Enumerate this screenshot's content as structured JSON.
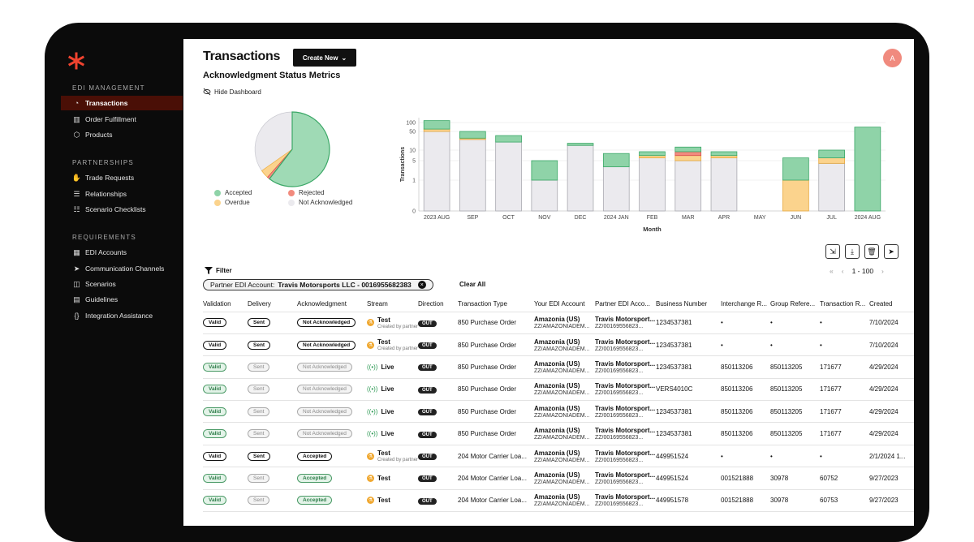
{
  "sidebar": {
    "sections": [
      {
        "title": "EDI MANAGEMENT",
        "items": [
          {
            "label": "Transactions",
            "icon": "chart-icon",
            "active": true
          },
          {
            "label": "Order Fulfillment",
            "icon": "barcode-icon"
          },
          {
            "label": "Products",
            "icon": "box-icon"
          }
        ]
      },
      {
        "title": "PARTNERSHIPS",
        "items": [
          {
            "label": "Trade Requests",
            "icon": "handshake-icon"
          },
          {
            "label": "Relationships",
            "icon": "sliders-icon"
          },
          {
            "label": "Scenario Checklists",
            "icon": "checklist-icon"
          }
        ]
      },
      {
        "title": "REQUIREMENTS",
        "items": [
          {
            "label": "EDI Accounts",
            "icon": "grid-icon"
          },
          {
            "label": "Communication Channels",
            "icon": "send-icon"
          },
          {
            "label": "Scenarios",
            "icon": "layers-icon"
          },
          {
            "label": "Guidelines",
            "icon": "book-icon"
          },
          {
            "label": "Integration Assistance",
            "icon": "braces-icon"
          }
        ]
      }
    ]
  },
  "header": {
    "title": "Transactions",
    "create_label": "Create New",
    "avatar": "A",
    "subtitle": "Acknowledgment Status Metrics",
    "hide_dashboard": "Hide Dashboard"
  },
  "pie": {
    "legend": [
      {
        "label": "Accepted",
        "color": "#8fd3a8"
      },
      {
        "label": "Rejected",
        "color": "#f28b7e"
      },
      {
        "label": "Overdue",
        "color": "#fbd38d"
      },
      {
        "label": "Not Acknowledged",
        "color": "#ebeaee"
      }
    ]
  },
  "chart_data": {
    "type": "bar",
    "stacked": true,
    "yscale": "log",
    "xlabel": "Month",
    "ylabel": "Transactions",
    "yticks": [
      "0",
      "1",
      "5",
      "10",
      "50",
      "100"
    ],
    "categories": [
      "2023 AUG",
      "SEP",
      "OCT",
      "NOV",
      "DEC",
      "2024 JAN",
      "FEB",
      "MAR",
      "APR",
      "MAY",
      "JUN",
      "JUL",
      "2024 AUG"
    ],
    "series": [
      {
        "name": "Not Acknowledged",
        "color": "#ebeaee",
        "values": [
          50,
          25,
          20,
          1,
          15,
          3,
          6,
          5,
          6,
          0,
          0,
          4,
          0
        ]
      },
      {
        "name": "Overdue",
        "color": "#fbd38d",
        "values": [
          10,
          3,
          0,
          0,
          0,
          0,
          1,
          2,
          1,
          0,
          1,
          2,
          0
        ]
      },
      {
        "name": "Rejected",
        "color": "#f28b7e",
        "values": [
          0,
          0,
          0,
          0,
          0,
          0,
          0,
          2,
          0,
          0,
          0,
          0,
          0
        ]
      },
      {
        "name": "Accepted",
        "color": "#8fd3a8",
        "values": [
          60,
          22,
          15,
          4,
          3,
          5,
          2,
          4,
          2,
          0,
          5,
          4,
          70
        ]
      }
    ]
  },
  "toolbar": {
    "filter_label": "Filter",
    "chip_key": "Partner EDI Account:",
    "chip_value": "Travis Motorsports LLC - 0016955682383",
    "clear_all": "Clear All",
    "page_range": "1 - 100"
  },
  "table": {
    "columns": [
      "Validation",
      "Delivery",
      "Acknowledgment",
      "Stream",
      "Direction",
      "Transaction Type",
      "Your EDI Account",
      "Partner EDI Acco...",
      "Business Number",
      "Interchange R...",
      "Group Refere...",
      "Transaction R...",
      "Created"
    ],
    "rows": [
      {
        "validation": "Valid",
        "v_style": "",
        "delivery": "Sent",
        "d_style": "",
        "ack": "Not Acknowledged",
        "a_style": "",
        "stream": "Test",
        "stream_sub": "Created by partner",
        "direction": "OUT",
        "type": "850 Purchase Order",
        "your_name": "Amazonia (US)",
        "your_id": "ZZ/AMAZONIADEM...",
        "partner_name": "Travis Motorsport...",
        "partner_id": "ZZ/00169556823...",
        "business": "1234537381",
        "interchange": "•",
        "group": "•",
        "txn": "•",
        "created": "7/10/2024"
      },
      {
        "validation": "Valid",
        "v_style": "",
        "delivery": "Sent",
        "d_style": "",
        "ack": "Not Acknowledged",
        "a_style": "",
        "stream": "Test",
        "stream_sub": "Created by partner",
        "direction": "OUT",
        "type": "850 Purchase Order",
        "your_name": "Amazonia (US)",
        "your_id": "ZZ/AMAZONIADEM...",
        "partner_name": "Travis Motorsport...",
        "partner_id": "ZZ/00169556823...",
        "business": "1234537381",
        "interchange": "•",
        "group": "•",
        "txn": "•",
        "created": "7/10/2024"
      },
      {
        "validation": "Valid",
        "v_style": "green",
        "delivery": "Sent",
        "d_style": "muted",
        "ack": "Not Acknowledged",
        "a_style": "muted",
        "stream": "Live",
        "stream_sub": "",
        "direction": "OUT",
        "type": "850 Purchase Order",
        "your_name": "Amazonia (US)",
        "your_id": "ZZ/AMAZONIADEM...",
        "partner_name": "Travis Motorsport...",
        "partner_id": "ZZ/00169556823...",
        "business": "1234537381",
        "interchange": "850113206",
        "group": "850113205",
        "txn": "171677",
        "created": "4/29/2024"
      },
      {
        "validation": "Valid",
        "v_style": "green",
        "delivery": "Sent",
        "d_style": "muted",
        "ack": "Not Acknowledged",
        "a_style": "muted",
        "stream": "Live",
        "stream_sub": "",
        "direction": "OUT",
        "type": "850 Purchase Order",
        "your_name": "Amazonia (US)",
        "your_id": "ZZ/AMAZONIADEM...",
        "partner_name": "Travis Motorsport...",
        "partner_id": "ZZ/00169556823...",
        "business": "VERS4010C",
        "interchange": "850113206",
        "group": "850113205",
        "txn": "171677",
        "created": "4/29/2024"
      },
      {
        "validation": "Valid",
        "v_style": "green",
        "delivery": "Sent",
        "d_style": "muted",
        "ack": "Not Acknowledged",
        "a_style": "muted",
        "stream": "Live",
        "stream_sub": "",
        "direction": "OUT",
        "type": "850 Purchase Order",
        "your_name": "Amazonia (US)",
        "your_id": "ZZ/AMAZONIADEM...",
        "partner_name": "Travis Motorsport...",
        "partner_id": "ZZ/00169556823...",
        "business": "1234537381",
        "interchange": "850113206",
        "group": "850113205",
        "txn": "171677",
        "created": "4/29/2024"
      },
      {
        "validation": "Valid",
        "v_style": "green",
        "delivery": "Sent",
        "d_style": "muted",
        "ack": "Not Acknowledged",
        "a_style": "muted",
        "stream": "Live",
        "stream_sub": "",
        "direction": "OUT",
        "type": "850 Purchase Order",
        "your_name": "Amazonia (US)",
        "your_id": "ZZ/AMAZONIADEM...",
        "partner_name": "Travis Motorsport...",
        "partner_id": "ZZ/00169556823...",
        "business": "1234537381",
        "interchange": "850113206",
        "group": "850113205",
        "txn": "171677",
        "created": "4/29/2024"
      },
      {
        "validation": "Valid",
        "v_style": "",
        "delivery": "Sent",
        "d_style": "",
        "ack": "Accepted",
        "a_style": "",
        "stream": "Test",
        "stream_sub": "Created by partner",
        "direction": "OUT",
        "type": "204 Motor Carrier Loa...",
        "your_name": "Amazonia (US)",
        "your_id": "ZZ/AMAZONIADEM...",
        "partner_name": "Travis Motorsport...",
        "partner_id": "ZZ/00169556823...",
        "business": "449951524",
        "interchange": "•",
        "group": "•",
        "txn": "•",
        "created": "2/1/2024 1..."
      },
      {
        "validation": "Valid",
        "v_style": "green",
        "delivery": "Sent",
        "d_style": "muted",
        "ack": "Accepted",
        "a_style": "green",
        "stream": "Test",
        "stream_sub": "",
        "direction": "OUT",
        "type": "204 Motor Carrier Loa...",
        "your_name": "Amazonia (US)",
        "your_id": "ZZ/AMAZONIADEM...",
        "partner_name": "Travis Motorsport...",
        "partner_id": "ZZ/00169556823...",
        "business": "449951524",
        "interchange": "001521888",
        "group": "30978",
        "txn": "60752",
        "created": "9/27/2023"
      },
      {
        "validation": "Valid",
        "v_style": "green",
        "delivery": "Sent",
        "d_style": "muted",
        "ack": "Accepted",
        "a_style": "green",
        "stream": "Test",
        "stream_sub": "",
        "direction": "OUT",
        "type": "204 Motor Carrier Loa...",
        "your_name": "Amazonia (US)",
        "your_id": "ZZ/AMAZONIADEM...",
        "partner_name": "Travis Motorsport...",
        "partner_id": "ZZ/00169556823...",
        "business": "449951578",
        "interchange": "001521888",
        "group": "30978",
        "txn": "60753",
        "created": "9/27/2023"
      }
    ]
  }
}
